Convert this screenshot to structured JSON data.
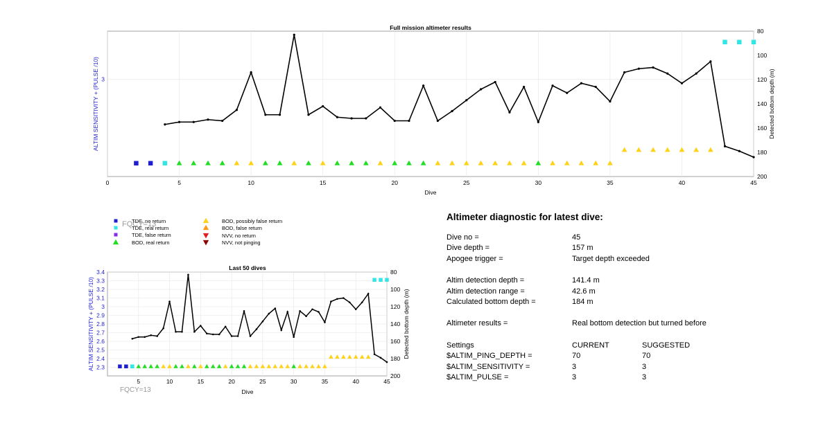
{
  "legend": [
    {
      "label": "TDE, no return",
      "marker": "square",
      "color": "#1f1fd0"
    },
    {
      "label": "TDE, real return",
      "marker": "square",
      "color": "#33e6e6"
    },
    {
      "label": "TDE, false return",
      "marker": "square",
      "color": "#8a2be2"
    },
    {
      "label": "BOD, real return",
      "marker": "triangle-up",
      "color": "#22dd22"
    },
    {
      "label": "BOD, possibly false return",
      "marker": "triangle-up",
      "color": "#ffd21a"
    },
    {
      "label": "BOD, false return",
      "marker": "triangle-up",
      "color": "#ff9a1a"
    },
    {
      "label": "NVV, no return",
      "marker": "triangle-down",
      "color": "#e02020"
    },
    {
      "label": "NVV, not pinging",
      "marker": "triangle-down",
      "color": "#8b0000"
    }
  ],
  "fqcy_label": "FQCY=13",
  "diagnostic": {
    "title": "Altimeter diagnostic for latest dive:",
    "dive_no_label": "Dive no =",
    "dive_no": "45",
    "dive_depth_label": "Dive depth =",
    "dive_depth": "157 m",
    "apogee_label": "Apogee trigger =",
    "apogee": "Target depth exceeded",
    "altim_depth_label": "Altim detection depth =",
    "altim_depth": "141.4 m",
    "altim_range_label": "Altim detection range =",
    "altim_range": "42.6 m",
    "calc_depth_label": "Calculated bottom depth =",
    "calc_depth": "184 m",
    "results_label": "Altimeter results =",
    "results": "Real bottom detection but turned before",
    "settings_label": "Settings",
    "current_label": "CURRENT",
    "suggested_label": "SUGGESTED",
    "settings": [
      {
        "name": "$ALTIM_PING_DEPTH =",
        "current": "70",
        "suggested": "70"
      },
      {
        "name": "$ALTIM_SENSITIVITY =",
        "current": "3",
        "suggested": "3"
      },
      {
        "name": "$ALTIM_PULSE =",
        "current": "3",
        "suggested": "3"
      }
    ]
  },
  "chart_data": [
    {
      "type": "line",
      "title": "Full mission altimeter results",
      "xlabel": "Dive",
      "ylabel": "ALTIM SENSITIVITY + (PULSE /10)",
      "ylabel_right": "Detected bottom depth (m)",
      "xlim": [
        0,
        45
      ],
      "x_ticks": [
        0,
        5,
        10,
        15,
        20,
        25,
        30,
        35,
        40,
        45
      ],
      "y_ticks": [
        3
      ],
      "y2lim": [
        80,
        200
      ],
      "y2_reversed": true,
      "y2_ticks": [
        80,
        100,
        120,
        140,
        160,
        180,
        200
      ],
      "grid": true,
      "series": [
        {
          "marker": "line-dot",
          "color": "#000000",
          "axis": "right",
          "x": [
            4,
            5,
            6,
            7,
            8,
            9,
            10,
            11,
            12,
            13,
            14,
            15,
            16,
            17,
            18,
            19,
            20,
            21,
            22,
            23,
            24,
            25,
            26,
            27,
            28,
            29,
            30,
            31,
            32,
            33,
            34,
            35,
            36,
            37,
            38,
            39,
            40,
            41,
            42,
            43,
            44,
            45
          ],
          "values": [
            157,
            155,
            155,
            153,
            154,
            145,
            114,
            149,
            149,
            83,
            149,
            142,
            151,
            152,
            152,
            143,
            154,
            154,
            125,
            154,
            146,
            137,
            128,
            122,
            147,
            126,
            155,
            125,
            131,
            123,
            126,
            138,
            114,
            111,
            110,
            115,
            123,
            115,
            105,
            175,
            179,
            184
          ]
        },
        {
          "marker": "square",
          "color": "#1f1fd0",
          "axis": "right",
          "x": [
            2,
            3
          ],
          "values": [
            189,
            189
          ]
        },
        {
          "marker": "square",
          "color": "#33e6e6",
          "axis": "right",
          "x": [
            4,
            43,
            44,
            45
          ],
          "values": [
            189,
            89,
            89,
            89
          ]
        },
        {
          "marker": "triangle-up",
          "color": "#22dd22",
          "axis": "right",
          "x": [
            5,
            6,
            7,
            8,
            11,
            12,
            14,
            16,
            17,
            18,
            20,
            21,
            22,
            30
          ],
          "values": [
            189,
            189,
            189,
            189,
            189,
            189,
            189,
            189,
            189,
            189,
            189,
            189,
            189,
            189
          ]
        },
        {
          "marker": "triangle-up",
          "color": "#ffd21a",
          "axis": "right",
          "x": [
            9,
            10,
            13,
            15,
            19,
            23,
            24,
            25,
            26,
            27,
            28,
            29,
            31,
            32,
            33,
            34,
            35,
            36,
            37,
            38,
            39,
            40,
            41,
            42
          ],
          "values": [
            189,
            189,
            189,
            189,
            189,
            189,
            189,
            189,
            189,
            189,
            189,
            189,
            189,
            189,
            189,
            189,
            189,
            178,
            178,
            178,
            178,
            178,
            178,
            178
          ]
        }
      ]
    },
    {
      "type": "line",
      "title": "Last 50 dives",
      "xlabel": "Dive",
      "ylabel": "ALTIM SENSITIVITY + (PULSE /10)",
      "ylabel_right": "Detected bottom depth (m)",
      "xlim": [
        0,
        45
      ],
      "x_ticks": [
        5,
        10,
        15,
        20,
        25,
        30,
        35,
        40,
        45
      ],
      "ylim": [
        2.2,
        3.4
      ],
      "y_ticks": [
        2.3,
        2.4,
        2.5,
        2.6,
        2.7,
        2.8,
        2.9,
        3,
        3.1,
        3.2,
        3.3,
        3.4
      ],
      "y_tick_labels": [
        "2.3",
        "2.4",
        "2.5",
        "2.6",
        "2.7",
        "2.8",
        "2.9",
        "3",
        "3.1",
        "3.2",
        "3.3",
        "3.4"
      ],
      "y2lim": [
        80,
        200
      ],
      "y2_reversed": true,
      "y2_ticks": [
        80,
        100,
        120,
        140,
        160,
        180,
        200
      ],
      "grid": true,
      "series": [
        {
          "marker": "line-dot",
          "color": "#000000",
          "axis": "right",
          "x": [
            4,
            5,
            6,
            7,
            8,
            9,
            10,
            11,
            12,
            13,
            14,
            15,
            16,
            17,
            18,
            19,
            20,
            21,
            22,
            23,
            24,
            25,
            26,
            27,
            28,
            29,
            30,
            31,
            32,
            33,
            34,
            35,
            36,
            37,
            38,
            39,
            40,
            41,
            42,
            43,
            44,
            45
          ],
          "values": [
            157,
            155,
            155,
            153,
            154,
            145,
            114,
            149,
            149,
            83,
            149,
            142,
            151,
            152,
            152,
            143,
            154,
            154,
            125,
            154,
            146,
            137,
            128,
            122,
            147,
            126,
            155,
            125,
            131,
            123,
            126,
            138,
            114,
            111,
            110,
            115,
            123,
            115,
            105,
            175,
            179,
            184
          ]
        },
        {
          "marker": "square",
          "color": "#1f1fd0",
          "axis": "right",
          "x": [
            2,
            3
          ],
          "values": [
            189,
            189
          ]
        },
        {
          "marker": "square",
          "color": "#33e6e6",
          "axis": "right",
          "x": [
            4,
            43,
            44,
            45
          ],
          "values": [
            189,
            89,
            89,
            89
          ]
        },
        {
          "marker": "triangle-up",
          "color": "#22dd22",
          "axis": "right",
          "x": [
            5,
            6,
            7,
            8,
            11,
            12,
            14,
            16,
            17,
            18,
            20,
            21,
            22,
            30
          ],
          "values": [
            189,
            189,
            189,
            189,
            189,
            189,
            189,
            189,
            189,
            189,
            189,
            189,
            189,
            189
          ]
        },
        {
          "marker": "triangle-up",
          "color": "#ffd21a",
          "axis": "right",
          "x": [
            9,
            10,
            13,
            15,
            19,
            23,
            24,
            25,
            26,
            27,
            28,
            29,
            31,
            32,
            33,
            34,
            35,
            36,
            37,
            38,
            39,
            40,
            41,
            42
          ],
          "values": [
            189,
            189,
            189,
            189,
            189,
            189,
            189,
            189,
            189,
            189,
            189,
            189,
            189,
            189,
            189,
            189,
            189,
            178,
            178,
            178,
            178,
            178,
            178,
            178
          ]
        }
      ]
    }
  ]
}
